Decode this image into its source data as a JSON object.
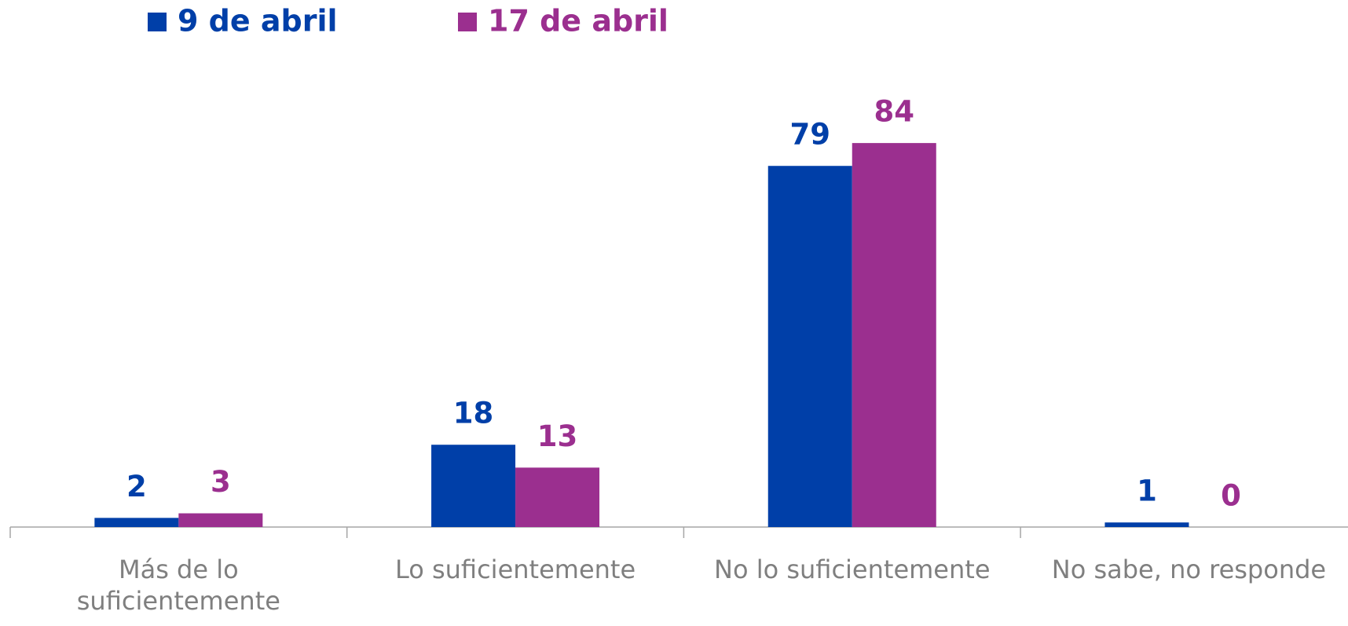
{
  "chart_data": {
    "type": "bar",
    "categories": [
      "Más de lo suficientemente",
      "Lo suficientemente",
      "No lo suficientemente",
      "No sabe, no responde"
    ],
    "series": [
      {
        "name": "9 de abril",
        "color": "#003fa8",
        "values": [
          2,
          18,
          79,
          1
        ]
      },
      {
        "name": "17 de abril",
        "color": "#9b2f8f",
        "values": [
          3,
          13,
          84,
          0
        ]
      }
    ]
  }
}
